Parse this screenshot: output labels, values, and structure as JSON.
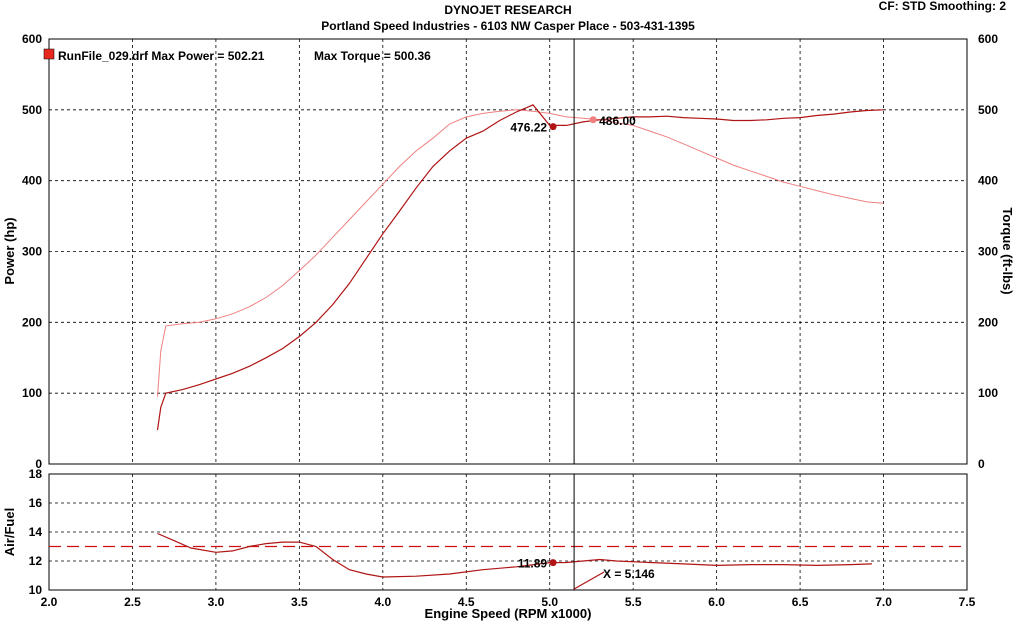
{
  "header": {
    "title": "DYNOJET RESEARCH",
    "subtitle": "Portland Speed Industries - 6103 NW Casper Place - 503-431-1395",
    "cf_label": "CF: STD  Smoothing: 2"
  },
  "legend": {
    "run_label": "RunFile_029.drf Max Power = 502.21",
    "torque_label": "Max Torque = 500.36",
    "marker_color": "#e8281e"
  },
  "colors": {
    "power": "#b01414",
    "torque": "#f08080",
    "afr": "#b01414",
    "target": "#d01010"
  },
  "chart_data": [
    {
      "type": "line",
      "name": "power-torque",
      "xlabel": "Engine Speed (RPM x1000)",
      "ylabel": "Power (hp)",
      "y2label": "Torque (ft-lbs)",
      "xlim": [
        2.0,
        7.5
      ],
      "ylim": [
        0,
        600
      ],
      "y2lim": [
        0,
        600
      ],
      "xticks": [
        "2.0",
        "2.5",
        "3.0",
        "3.5",
        "4.0",
        "4.5",
        "5.0",
        "5.5",
        "6.0",
        "6.5",
        "7.0",
        "7.5"
      ],
      "yticks": [
        "0",
        "100",
        "200",
        "300",
        "400",
        "500",
        "600"
      ],
      "grid": true,
      "cursor_x": 5.146,
      "series": [
        {
          "name": "Power",
          "x": [
            2.65,
            2.67,
            2.7,
            2.8,
            2.9,
            3.0,
            3.1,
            3.2,
            3.3,
            3.4,
            3.5,
            3.6,
            3.7,
            3.8,
            3.9,
            4.0,
            4.1,
            4.2,
            4.3,
            4.4,
            4.5,
            4.6,
            4.7,
            4.8,
            4.9,
            5.0,
            5.1,
            5.2,
            5.3,
            5.4,
            5.5,
            5.6,
            5.7,
            5.8,
            5.9,
            6.0,
            6.1,
            6.2,
            6.3,
            6.4,
            6.5,
            6.6,
            6.7,
            6.8,
            6.9,
            7.0
          ],
          "values": [
            48,
            80,
            100,
            105,
            112,
            120,
            128,
            138,
            150,
            163,
            180,
            200,
            225,
            255,
            290,
            325,
            357,
            390,
            420,
            442,
            460,
            470,
            485,
            497,
            507,
            478,
            478,
            483,
            486,
            488,
            490,
            490,
            491,
            489,
            488,
            487,
            485,
            485,
            486,
            488,
            489,
            492,
            494,
            497,
            499,
            500
          ]
        },
        {
          "name": "Torque",
          "x": [
            2.65,
            2.67,
            2.7,
            2.8,
            2.9,
            3.0,
            3.1,
            3.2,
            3.3,
            3.4,
            3.5,
            3.6,
            3.7,
            3.8,
            3.9,
            4.0,
            4.1,
            4.2,
            4.3,
            4.4,
            4.5,
            4.6,
            4.7,
            4.8,
            4.9,
            5.0,
            5.1,
            5.2,
            5.3,
            5.4,
            5.5,
            5.6,
            5.7,
            5.8,
            5.9,
            6.0,
            6.1,
            6.2,
            6.3,
            6.4,
            6.5,
            6.6,
            6.7,
            6.8,
            6.9,
            7.0
          ],
          "values": [
            95,
            160,
            195,
            198,
            200,
            205,
            212,
            222,
            235,
            252,
            273,
            295,
            320,
            345,
            370,
            395,
            420,
            442,
            460,
            480,
            490,
            495,
            498,
            500,
            498,
            495,
            490,
            488,
            486,
            482,
            478,
            470,
            462,
            452,
            442,
            432,
            422,
            414,
            406,
            398,
            392,
            386,
            380,
            375,
            370,
            368
          ]
        }
      ],
      "annotations": [
        {
          "x": 5.02,
          "y": 476.22,
          "text": "476.22"
        },
        {
          "x": 5.26,
          "y": 486.0,
          "text": "486.00"
        }
      ]
    },
    {
      "type": "line",
      "name": "air-fuel",
      "xlabel": "Engine Speed (RPM x1000)",
      "ylabel": "Air/Fuel",
      "xlim": [
        2.0,
        7.5
      ],
      "ylim": [
        10,
        18
      ],
      "yticks": [
        "10",
        "12",
        "14",
        "16",
        "18"
      ],
      "grid": true,
      "target_line": 13.0,
      "series": [
        {
          "name": "AFR",
          "x": [
            2.65,
            2.75,
            2.85,
            3.0,
            3.1,
            3.2,
            3.3,
            3.4,
            3.5,
            3.6,
            3.7,
            3.8,
            3.9,
            4.0,
            4.2,
            4.4,
            4.6,
            4.8,
            5.0,
            5.1,
            5.2,
            5.3,
            5.4,
            5.6,
            5.8,
            6.0,
            6.2,
            6.4,
            6.6,
            6.8,
            6.93
          ],
          "values": [
            13.9,
            13.4,
            12.9,
            12.6,
            12.7,
            13.0,
            13.2,
            13.3,
            13.3,
            13.0,
            12.1,
            11.4,
            11.1,
            10.9,
            10.95,
            11.1,
            11.4,
            11.6,
            11.89,
            11.9,
            12.0,
            12.1,
            12.0,
            11.9,
            11.8,
            11.7,
            11.75,
            11.75,
            11.7,
            11.75,
            11.8
          ]
        }
      ],
      "annotations": [
        {
          "x": 5.02,
          "y": 11.89,
          "text": "11.89"
        }
      ],
      "cursor_label": "X = 5.146"
    }
  ]
}
